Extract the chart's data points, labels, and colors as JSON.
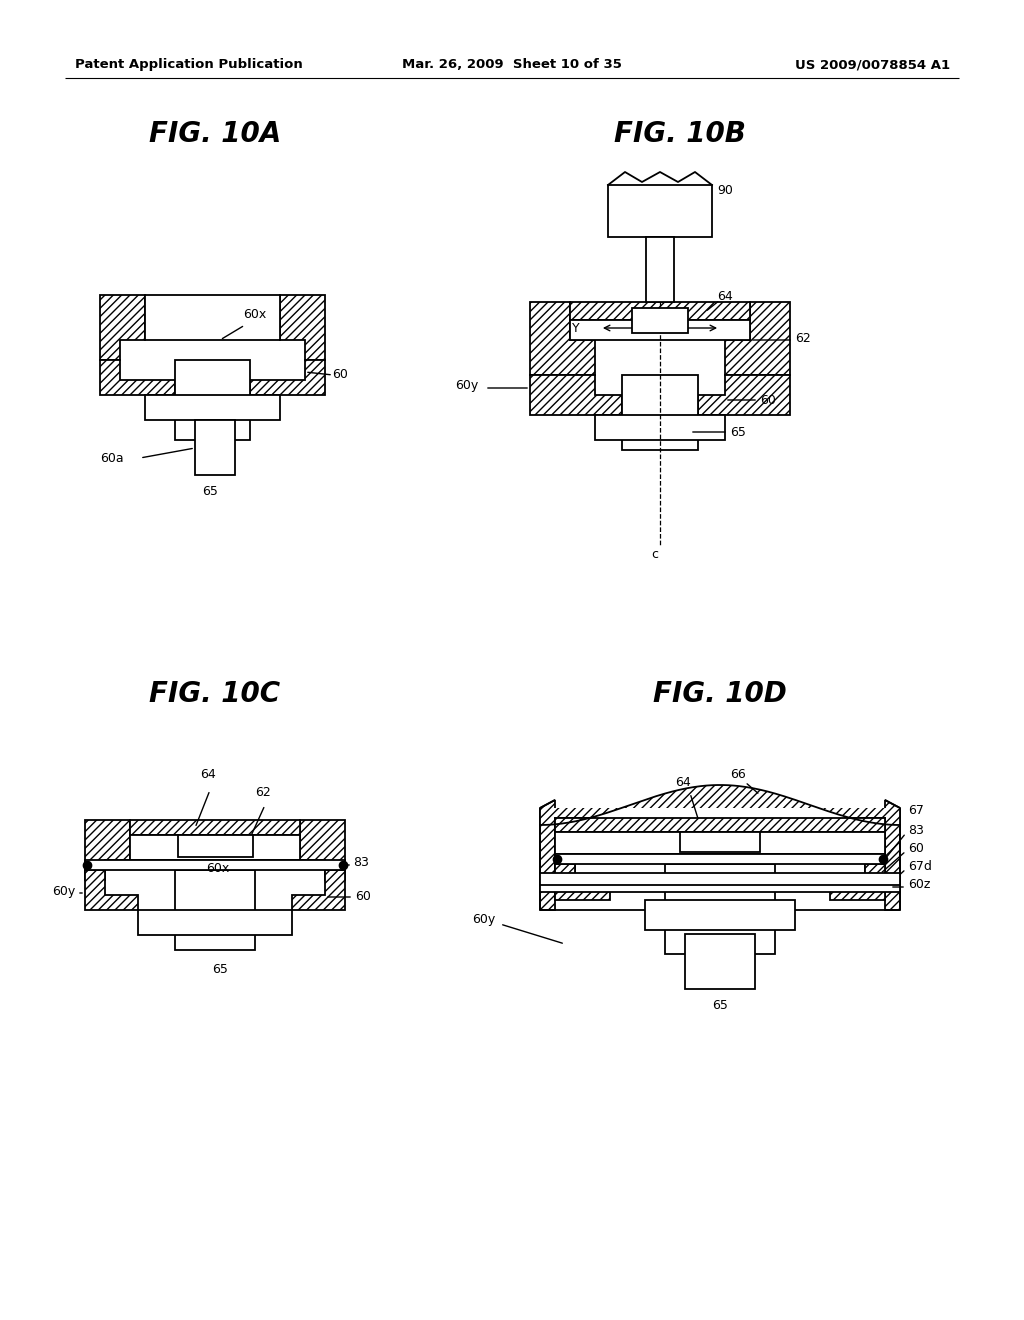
{
  "header_left": "Patent Application Publication",
  "header_mid": "Mar. 26, 2009  Sheet 10 of 35",
  "header_right": "US 2009/0078854 A1",
  "fig_titles": [
    "FIG. 10A",
    "FIG. 10B",
    "FIG. 10C",
    "FIG. 10D"
  ],
  "bg_color": "#ffffff",
  "line_color": "#000000",
  "header_fontsize": 10,
  "title_fontsize": 20
}
